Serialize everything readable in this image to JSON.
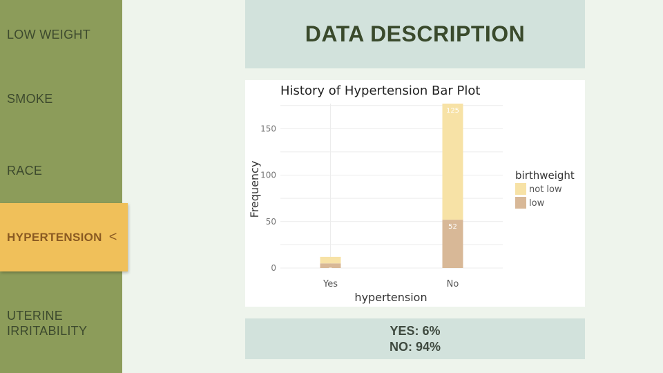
{
  "sidebar": {
    "items": [
      {
        "label": "LOW WEIGHT",
        "active": false
      },
      {
        "label": "SMOKE",
        "active": false
      },
      {
        "label": "RACE",
        "active": false
      },
      {
        "label": "HYPERTENSION",
        "active": true
      },
      {
        "label": "UTERINE IRRITABILITY",
        "active": false
      }
    ],
    "active_chevron": "<"
  },
  "main": {
    "title": "DATA DESCRIPTION",
    "stats": {
      "yes": "YES: 6%",
      "no": "NO: 94%"
    }
  },
  "colors": {
    "sidebar_bg": "#8c9c5a",
    "active_tab": "#f0c05a",
    "not_low": "#f7e2a6",
    "low": "#d8b897"
  },
  "chart_data": {
    "type": "bar",
    "stacked": true,
    "title": "History of Hypertension Bar Plot",
    "xlabel": "hypertension",
    "ylabel": "Frequency",
    "categories": [
      "Yes",
      "No"
    ],
    "series": [
      {
        "name": "low",
        "values": [
          5,
          52
        ],
        "labels": [
          "5",
          "52"
        ],
        "color": "#d8b897"
      },
      {
        "name": "not low",
        "values": [
          7,
          125
        ],
        "labels": [
          "",
          "125"
        ],
        "color": "#f7e2a6"
      }
    ],
    "yticks": [
      0,
      50,
      100,
      150
    ],
    "ylim": [
      0,
      177
    ],
    "legend_title": "birthweight",
    "legend": [
      "not low",
      "low"
    ],
    "legend_position": "right",
    "grid": true
  }
}
